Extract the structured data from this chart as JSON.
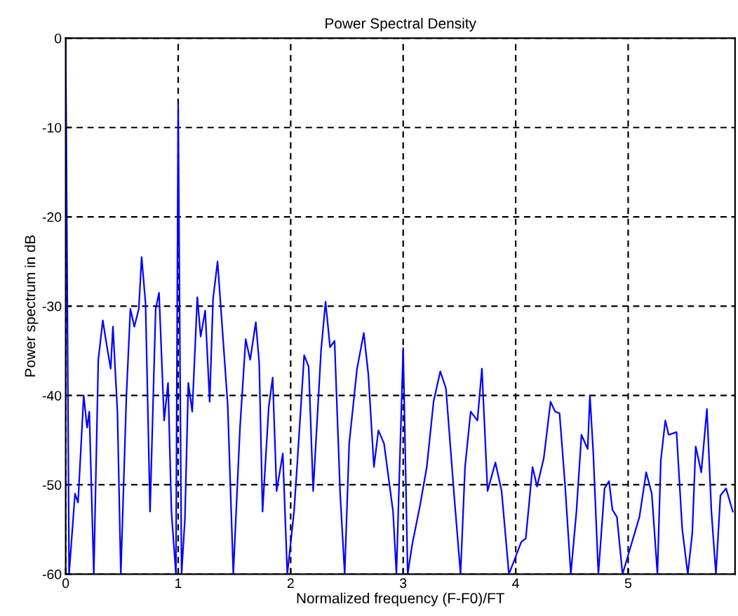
{
  "chart_data": {
    "type": "line",
    "title": "Power Spectral Density",
    "xlabel": "Normalized frequency (F-F0)/FT",
    "ylabel": "Power spectrum in dB",
    "xlim": [
      0,
      5.95
    ],
    "ylim": [
      -60,
      0
    ],
    "xticks": [
      0,
      1,
      2,
      3,
      4,
      5
    ],
    "yticks": [
      0,
      -10,
      -20,
      -30,
      -40,
      -50,
      -60
    ],
    "grid": true,
    "series": [
      {
        "color": "#0000ff",
        "x": [
          0,
          0.03,
          0.083,
          0.11,
          0.16,
          0.19,
          0.21,
          0.25,
          0.29,
          0.33,
          0.36,
          0.4,
          0.42,
          0.46,
          0.49,
          0.54,
          0.575,
          0.61,
          0.65,
          0.675,
          0.71,
          0.75,
          0.8,
          0.83,
          0.875,
          0.91,
          0.94,
          0.98,
          1.0,
          1.03,
          1.06,
          1.09,
          1.125,
          1.17,
          1.2,
          1.24,
          1.28,
          1.31,
          1.35,
          1.38,
          1.44,
          1.49,
          1.55,
          1.6,
          1.64,
          1.69,
          1.72,
          1.75,
          1.805,
          1.84,
          1.875,
          1.93,
          1.97,
          2.03,
          2.06,
          2.12,
          2.16,
          2.2,
          2.27,
          2.31,
          2.35,
          2.39,
          2.44,
          2.48,
          2.52,
          2.59,
          2.65,
          2.69,
          2.74,
          2.78,
          2.83,
          2.91,
          2.94,
          3.0,
          3.04,
          3.08,
          3.15,
          3.21,
          3.27,
          3.33,
          3.38,
          3.45,
          3.51,
          3.55,
          3.6,
          3.66,
          3.7,
          3.75,
          3.82,
          3.875,
          3.94,
          4.05,
          4.09,
          4.15,
          4.19,
          4.25,
          4.31,
          4.35,
          4.39,
          4.44,
          4.49,
          4.54,
          4.585,
          4.64,
          4.66,
          4.69,
          4.735,
          4.79,
          4.83,
          4.86,
          4.9,
          4.95,
          5.1,
          5.16,
          5.21,
          5.26,
          5.29,
          5.33,
          5.36,
          5.43,
          5.48,
          5.53,
          5.57,
          5.6,
          5.65,
          5.7,
          5.74,
          5.78,
          5.82,
          5.87,
          5.93
        ],
        "values": [
          0,
          -60,
          -51,
          -52,
          -40,
          -43.6,
          -41.8,
          -60,
          -36,
          -31.6,
          -34,
          -37,
          -32.3,
          -41.8,
          -60,
          -40,
          -30.3,
          -32.3,
          -30.3,
          -24.5,
          -29.7,
          -53,
          -30.3,
          -28.5,
          -42.8,
          -38.6,
          -53,
          -60,
          -7.5,
          -60,
          -53.8,
          -38.6,
          -41.8,
          -29,
          -33.4,
          -30.5,
          -40.7,
          -29.2,
          -25,
          -30.3,
          -41,
          -60,
          -43.5,
          -33.7,
          -36,
          -31.8,
          -36.3,
          -53,
          -41.3,
          -38,
          -50.7,
          -46.5,
          -60,
          -53,
          -47.3,
          -35.5,
          -36.8,
          -50.7,
          -35,
          -29.5,
          -34.6,
          -33.9,
          -51,
          -60,
          -45.4,
          -37,
          -33,
          -37.6,
          -48,
          -43.9,
          -45.4,
          -53,
          -60,
          -34.7,
          -60,
          -56.7,
          -52.3,
          -48,
          -40.7,
          -37.3,
          -39.2,
          -50.7,
          -60,
          -48,
          -41.8,
          -42.8,
          -37,
          -50.7,
          -47.5,
          -50.7,
          -60,
          -56.4,
          -56,
          -48,
          -50.2,
          -47,
          -40.7,
          -41.8,
          -42,
          -50.2,
          -60,
          -53,
          -44.4,
          -46,
          -40,
          -46.5,
          -60,
          -50.4,
          -49.6,
          -52.8,
          -53.6,
          -60,
          -53.6,
          -48.6,
          -51,
          -60,
          -47.3,
          -42.8,
          -44.4,
          -44.1,
          -54.9,
          -60,
          -55.4,
          -45.7,
          -48.6,
          -41.5,
          -53,
          -60,
          -51.2,
          -50.4,
          -53
        ]
      }
    ]
  }
}
